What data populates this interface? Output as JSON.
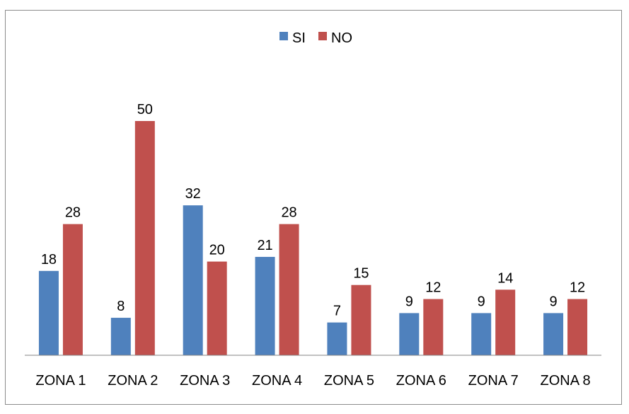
{
  "chart_data": {
    "type": "bar",
    "categories": [
      "ZONA 1",
      "ZONA 2",
      "ZONA 3",
      "ZONA 4",
      "ZONA 5",
      "ZONA 6",
      "ZONA 7",
      "ZONA 8"
    ],
    "series": [
      {
        "name": "SI",
        "values": [
          18,
          8,
          32,
          21,
          7,
          9,
          9,
          9
        ],
        "color": "#4f81bd"
      },
      {
        "name": "NO",
        "values": [
          28,
          50,
          20,
          28,
          15,
          12,
          14,
          12
        ],
        "color": "#c0504d"
      }
    ],
    "ylim": [
      0,
      55
    ],
    "grid": false,
    "legend_position": "top-center",
    "data_labels": true
  }
}
